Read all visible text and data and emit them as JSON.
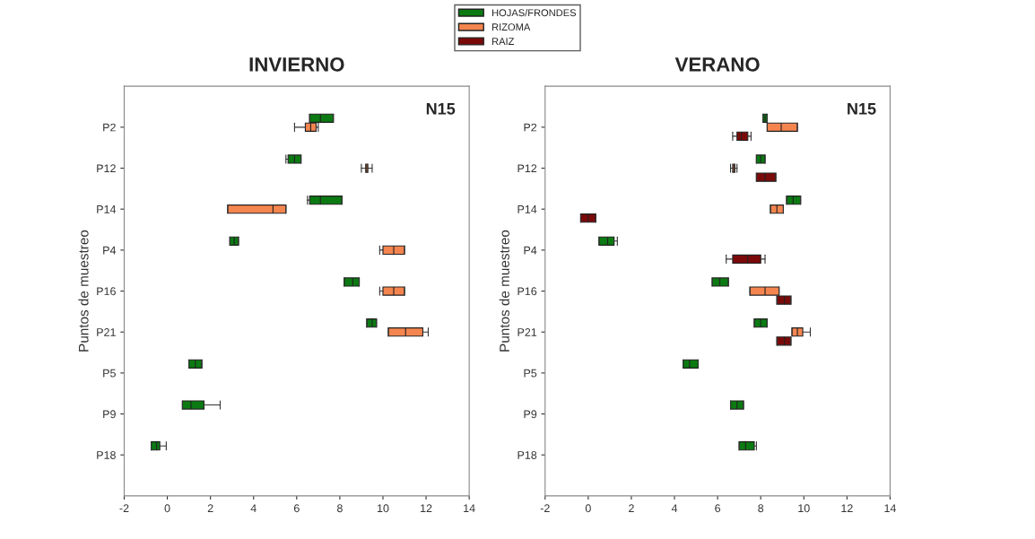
{
  "chart_data": [
    {
      "type": "box",
      "title": "INVIERNO",
      "ylabel": "Puntos de muestreo",
      "orientation": "horizontal",
      "annotations": [
        "N15"
      ],
      "categories": [
        "P2",
        "P12",
        "P14",
        "P4",
        "P16",
        "P21",
        "P5",
        "P9",
        "P18"
      ],
      "xlim": [
        -2,
        14
      ],
      "xticks": [
        -2,
        0,
        2,
        4,
        6,
        8,
        10,
        12,
        14
      ],
      "grid": false,
      "legend": "top",
      "series": [
        {
          "name": "HOJAS/FRONDES",
          "color": "#0b7a12",
          "boxes": [
            {
              "low": 6.6,
              "q1": 6.6,
              "median": 7.1,
              "q3": 7.7,
              "high": 7.7
            },
            {
              "low": 5.5,
              "q1": 5.6,
              "median": 5.9,
              "q3": 6.2,
              "high": 6.2
            },
            {
              "low": 6.5,
              "q1": 6.6,
              "median": 7.1,
              "q3": 8.1,
              "high": 8.1
            },
            {
              "low": 2.9,
              "q1": 2.9,
              "median": 3.1,
              "q3": 3.3,
              "high": 3.3
            },
            {
              "low": 8.2,
              "q1": 8.2,
              "median": 8.6,
              "q3": 8.9,
              "high": 8.9
            },
            {
              "low": 9.25,
              "q1": 9.25,
              "median": 9.5,
              "q3": 9.7,
              "high": 9.7
            },
            {
              "low": 1.0,
              "q1": 1.0,
              "median": 1.3,
              "q3": 1.6,
              "high": 1.6
            },
            {
              "low": 0.7,
              "q1": 0.7,
              "median": 1.1,
              "q3": 1.7,
              "high": 2.45
            },
            {
              "low": -0.75,
              "q1": -0.75,
              "median": -0.5,
              "q3": -0.35,
              "high": -0.05
            }
          ]
        },
        {
          "name": "RIZOMA",
          "color": "#f4854f",
          "boxes": [
            {
              "low": 5.9,
              "q1": 6.4,
              "median": 6.65,
              "q3": 6.9,
              "high": 7.0
            },
            {
              "low": 9.0,
              "q1": 9.2,
              "median": 9.25,
              "q3": 9.3,
              "high": 9.5
            },
            {
              "low": 2.8,
              "q1": 2.8,
              "median": 4.9,
              "q3": 5.5,
              "high": 5.5
            },
            {
              "low": 9.85,
              "q1": 10.0,
              "median": 10.5,
              "q3": 11.0,
              "high": 11.0
            },
            {
              "low": 9.85,
              "q1": 10.0,
              "median": 10.5,
              "q3": 11.0,
              "high": 11.0
            },
            {
              "low": 10.25,
              "q1": 10.25,
              "median": 11.05,
              "q3": 11.85,
              "high": 12.1
            },
            null,
            null,
            null
          ]
        },
        {
          "name": "RAIZ",
          "color": "#7a0a0a",
          "boxes": [
            null,
            null,
            null,
            null,
            null,
            null,
            null,
            null,
            null
          ]
        }
      ]
    },
    {
      "type": "box",
      "title": "VERANO",
      "ylabel": "Puntos de muestreo",
      "orientation": "horizontal",
      "annotations": [
        "N15"
      ],
      "categories": [
        "P2",
        "P12",
        "P14",
        "P4",
        "P16",
        "P21",
        "P5",
        "P9",
        "P18"
      ],
      "xlim": [
        -2,
        14
      ],
      "xticks": [
        -2,
        0,
        2,
        4,
        6,
        8,
        10,
        12,
        14
      ],
      "grid": false,
      "series": [
        {
          "color": "#0b7a12",
          "boxes": [
            {
              "low": 8.1,
              "q1": 8.1,
              "median": 8.2,
              "q3": 8.3,
              "high": 8.3
            },
            {
              "low": 7.8,
              "q1": 7.8,
              "median": 8.0,
              "q3": 8.2,
              "high": 8.2
            },
            {
              "low": 9.2,
              "q1": 9.2,
              "median": 9.5,
              "q3": 9.85,
              "high": 9.85
            },
            {
              "low": 0.5,
              "q1": 0.5,
              "median": 0.9,
              "q3": 1.2,
              "high": 1.35
            },
            {
              "low": 5.75,
              "q1": 5.75,
              "median": 6.1,
              "q3": 6.5,
              "high": 6.5
            },
            {
              "low": 7.7,
              "q1": 7.7,
              "median": 8.0,
              "q3": 8.3,
              "high": 8.3
            },
            {
              "low": 4.4,
              "q1": 4.4,
              "median": 4.7,
              "q3": 5.1,
              "high": 5.1
            },
            {
              "low": 6.6,
              "q1": 6.6,
              "median": 6.9,
              "q3": 7.2,
              "high": 7.2
            },
            {
              "low": 7.0,
              "q1": 7.0,
              "median": 7.3,
              "q3": 7.7,
              "high": 7.8
            }
          ]
        },
        {
          "color": "#f4854f",
          "boxes": [
            {
              "low": 8.3,
              "q1": 8.3,
              "median": 8.95,
              "q3": 9.7,
              "high": 9.7
            },
            {
              "low": 6.6,
              "q1": 6.7,
              "median": 6.75,
              "q3": 6.8,
              "high": 6.9
            },
            {
              "low": 8.45,
              "q1": 8.45,
              "median": 8.75,
              "q3": 9.05,
              "high": 9.05
            },
            null,
            {
              "low": 7.5,
              "q1": 7.5,
              "median": 8.2,
              "q3": 8.85,
              "high": 8.85
            },
            {
              "low": 9.45,
              "q1": 9.45,
              "median": 9.7,
              "q3": 9.95,
              "high": 10.3
            },
            null,
            null,
            null
          ]
        },
        {
          "color": "#7a0a0a",
          "boxes": [
            {
              "low": 6.7,
              "q1": 6.9,
              "median": 7.1,
              "q3": 7.4,
              "high": 7.55
            },
            {
              "low": 7.8,
              "q1": 7.8,
              "median": 8.2,
              "q3": 8.7,
              "high": 8.7
            },
            {
              "low": -0.35,
              "q1": -0.35,
              "median": 0.0,
              "q3": 0.35,
              "high": 0.35
            },
            {
              "low": 6.4,
              "q1": 6.7,
              "median": 7.4,
              "q3": 8.0,
              "high": 8.2
            },
            {
              "low": 8.75,
              "q1": 8.75,
              "median": 9.1,
              "q3": 9.4,
              "high": 9.4
            },
            {
              "low": 8.75,
              "q1": 8.75,
              "median": 9.1,
              "q3": 9.4,
              "high": 9.4
            },
            null,
            null,
            null
          ]
        }
      ]
    }
  ]
}
